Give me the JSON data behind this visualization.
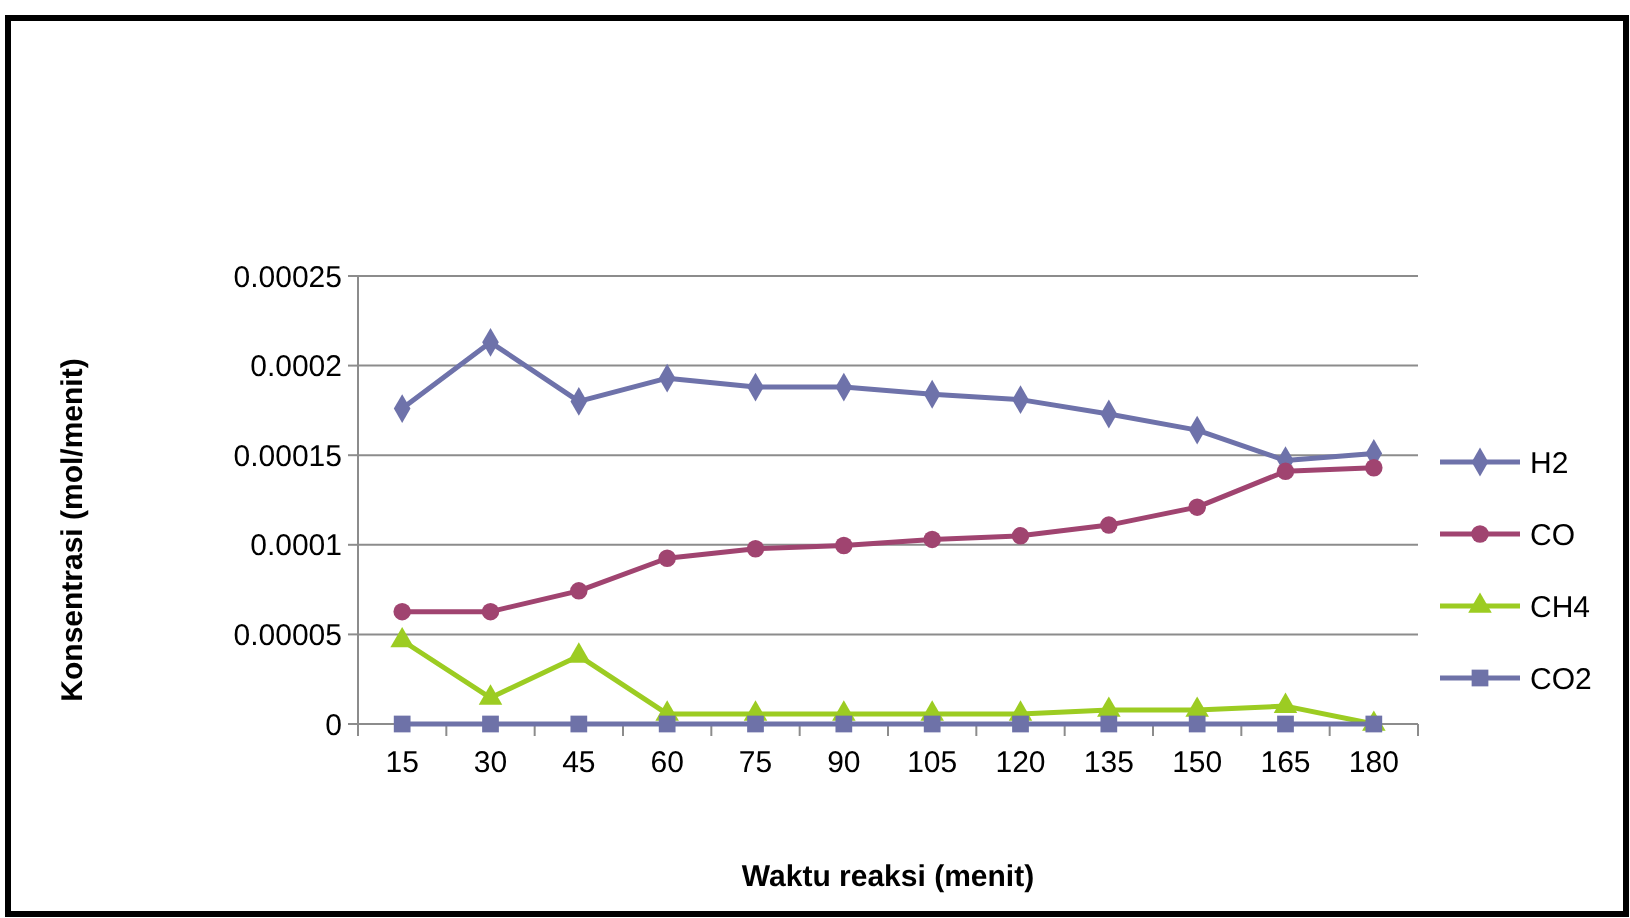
{
  "chart_data": {
    "type": "line",
    "xlabel": "Waktu reaksi (menit)",
    "ylabel": "Konsentrasi (mol/menit)",
    "categories": [
      "15",
      "30",
      "45",
      "60",
      "75",
      "90",
      "105",
      "120",
      "135",
      "150",
      "165",
      "180"
    ],
    "ylim": [
      0,
      0.00025
    ],
    "yticks": [
      {
        "value": 0,
        "label": "0"
      },
      {
        "value": 5e-05,
        "label": "0.00005"
      },
      {
        "value": 0.0001,
        "label": "0.0001"
      },
      {
        "value": 0.00015,
        "label": "0.00015"
      },
      {
        "value": 0.0002,
        "label": "0.0002"
      },
      {
        "value": 0.00025,
        "label": "0.00025"
      }
    ],
    "grid": "y",
    "legend": "right",
    "series": [
      {
        "name": "H2",
        "color": "#6e72aa",
        "marker": "diamond",
        "values": [
          0.000176,
          0.000213,
          0.00018,
          0.000193,
          0.000188,
          0.000188,
          0.000184,
          0.000181,
          0.000173,
          0.000164,
          0.000147,
          0.000151
        ]
      },
      {
        "name": "CO",
        "color": "#a04470",
        "marker": "circle",
        "values": [
          6.27e-05,
          6.27e-05,
          7.43e-05,
          9.25e-05,
          9.78e-05,
          9.96e-05,
          0.000103,
          0.000105,
          0.000111,
          0.000121,
          0.000141,
          0.000143
        ]
      },
      {
        "name": "CH4",
        "color": "#9ccc22",
        "marker": "triangle",
        "values": [
          4.66e-05,
          1.46e-05,
          3.8e-05,
          5.6e-06,
          5.6e-06,
          5.6e-06,
          5.6e-06,
          5.6e-06,
          7.8e-06,
          7.8e-06,
          1e-05,
          0
        ]
      },
      {
        "name": "CO2",
        "color": "#6e72a8",
        "marker": "square",
        "values": [
          0,
          0,
          0,
          0,
          0,
          0,
          0,
          0,
          0,
          0,
          0,
          0
        ]
      }
    ]
  }
}
